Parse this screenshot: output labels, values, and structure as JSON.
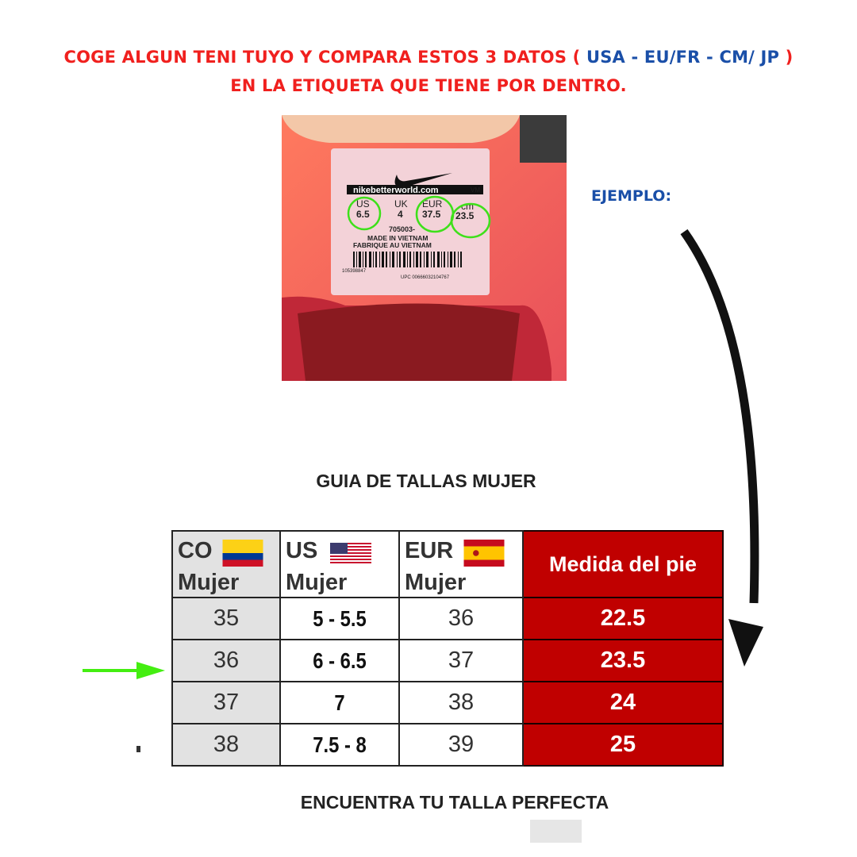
{
  "header": {
    "line1_a": "COGE ALGUN TENI TUYO Y COMPARA ESTOS 3 DATOS (",
    "line1_b": " USA - EU/FR - CM/ JP ",
    "line1_c": ")",
    "line2": "EN LA ETIQUETA QUE TIENE POR DENTRO."
  },
  "photo": {
    "label_brand": "nikebetterworld.com",
    "label_vm": "VM",
    "us_label": "US",
    "us_value": "6.5",
    "uk_label": "UK",
    "uk_value": "4",
    "eur_label": "EUR",
    "eur_value": "37.5",
    "cm_label": "cm",
    "cm_value": "23.5",
    "style_code": "705003-",
    "made_in": "MADE IN VIETNAM",
    "fabrique": "FABRIQUE AU VIETNAM",
    "serial": "105398847",
    "upc": "UPC 00666032104767"
  },
  "example_label": "EJEMPLO:",
  "guide_title": "GUIA DE TALLAS MUJER",
  "table": {
    "headers": [
      {
        "code": "CO",
        "sub": "Mujer",
        "flag": "colombia-flag"
      },
      {
        "code": "US",
        "sub": "Mujer",
        "flag": "usa-flag"
      },
      {
        "code": "EUR",
        "sub": "Mujer",
        "flag": "spain-flag"
      },
      {
        "code": "Medida del pie"
      }
    ],
    "rows": [
      {
        "co": "35",
        "us": "5 - 5.5",
        "eur": "36",
        "cm": "22.5"
      },
      {
        "co": "36",
        "us": "6 - 6.5",
        "eur": "37",
        "cm": "23.5"
      },
      {
        "co": "37",
        "us": "7",
        "eur": "38",
        "cm": "24"
      },
      {
        "co": "38",
        "us": "7.5 - 8",
        "eur": "39",
        "cm": "25"
      }
    ],
    "highlighted_row": 1
  },
  "footer": "ENCUENTRA TU TALLA PERFECTA",
  "colors": {
    "red_text": "#f0201e",
    "blue_text": "#1a4fa8",
    "table_red": "#c00000",
    "circle_green": "#3ee01a",
    "arrow_green": "#44ee11"
  }
}
